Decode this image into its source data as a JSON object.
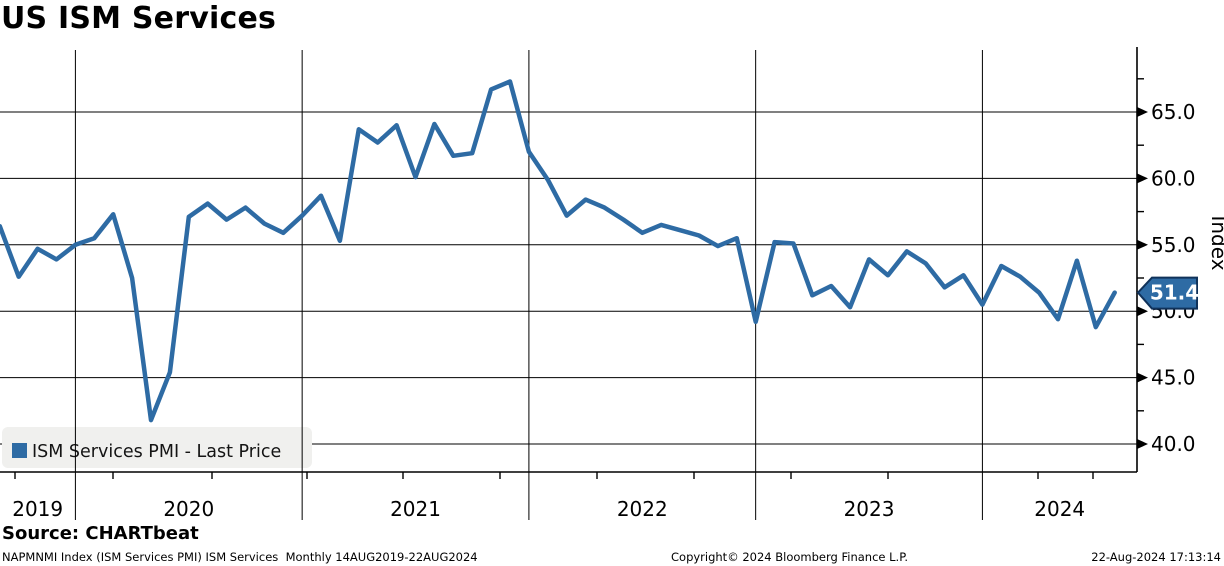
{
  "header": {
    "title": "US ISM Services"
  },
  "legend": {
    "label": "ISM Services PMI - Last Price",
    "swatch_color": "#2e6ba4"
  },
  "badge": {
    "value": "51.4",
    "fill": "#2e6ba4",
    "border": "#10325a",
    "text_color": "#ffffff"
  },
  "axis": {
    "y_title": "Index",
    "y_major_ticks": [
      65.0,
      60.0,
      55.0,
      50.0,
      45.0,
      40.0
    ],
    "y_major_tick_labels": [
      "65.0",
      "60.0",
      "55.0",
      "50.0",
      "45.0",
      "40.0"
    ],
    "y_minor_ticks": [
      67.5,
      62.5,
      57.5,
      52.5,
      47.5,
      42.5
    ],
    "x_year_labels": [
      "2019",
      "2020",
      "2021",
      "2022",
      "2023",
      "2024"
    ]
  },
  "source_line": "Source: CHARTbeat",
  "footer": {
    "left": "NAPMNMI Index (ISM Services PMI) ISM Services  Monthly 14AUG2019-22AUG2024",
    "center": "Copyright© 2024 Bloomberg Finance L.P.",
    "right": "22-Aug-2024 17:13:14"
  },
  "chart_data": {
    "type": "line",
    "title": "US ISM Services",
    "series_name": "ISM Services PMI - Last Price",
    "frequency": "Monthly",
    "date_range": "14AUG2019-22AUG2024",
    "ylabel": "Index",
    "ylim": [
      37.9,
      69.7
    ],
    "y_gridlines": [
      40,
      45,
      50,
      55,
      60,
      65
    ],
    "grid": true,
    "legend_position": "bottom-left",
    "line_color": "#2e6ba4",
    "last_price": 51.4,
    "months": [
      "2019-08",
      "2019-09",
      "2019-10",
      "2019-11",
      "2019-12",
      "2020-01",
      "2020-02",
      "2020-03",
      "2020-04",
      "2020-05",
      "2020-06",
      "2020-07",
      "2020-08",
      "2020-09",
      "2020-10",
      "2020-11",
      "2020-12",
      "2021-01",
      "2021-02",
      "2021-03",
      "2021-04",
      "2021-05",
      "2021-06",
      "2021-07",
      "2021-08",
      "2021-09",
      "2021-10",
      "2021-11",
      "2021-12",
      "2022-01",
      "2022-02",
      "2022-03",
      "2022-04",
      "2022-05",
      "2022-06",
      "2022-07",
      "2022-08",
      "2022-09",
      "2022-10",
      "2022-11",
      "2022-12",
      "2023-01",
      "2023-02",
      "2023-03",
      "2023-04",
      "2023-05",
      "2023-06",
      "2023-07",
      "2023-08",
      "2023-09",
      "2023-10",
      "2023-11",
      "2023-12",
      "2024-01",
      "2024-02",
      "2024-03",
      "2024-04",
      "2024-05",
      "2024-06",
      "2024-07"
    ],
    "values": [
      56.4,
      52.6,
      54.7,
      53.9,
      55.0,
      55.5,
      57.3,
      52.5,
      41.8,
      45.4,
      57.1,
      58.1,
      56.9,
      57.8,
      56.6,
      55.9,
      57.2,
      58.7,
      55.3,
      63.7,
      62.7,
      64.0,
      60.1,
      64.1,
      61.7,
      61.9,
      66.7,
      67.3,
      62.0,
      59.9,
      57.2,
      58.4,
      57.8,
      56.9,
      55.9,
      56.5,
      56.1,
      55.7,
      54.9,
      55.5,
      49.2,
      55.2,
      55.1,
      51.2,
      51.9,
      50.3,
      53.9,
      52.7,
      54.5,
      53.6,
      51.8,
      52.7,
      50.5,
      53.4,
      52.6,
      51.4,
      49.4,
      53.8,
      48.8,
      51.4
    ]
  }
}
